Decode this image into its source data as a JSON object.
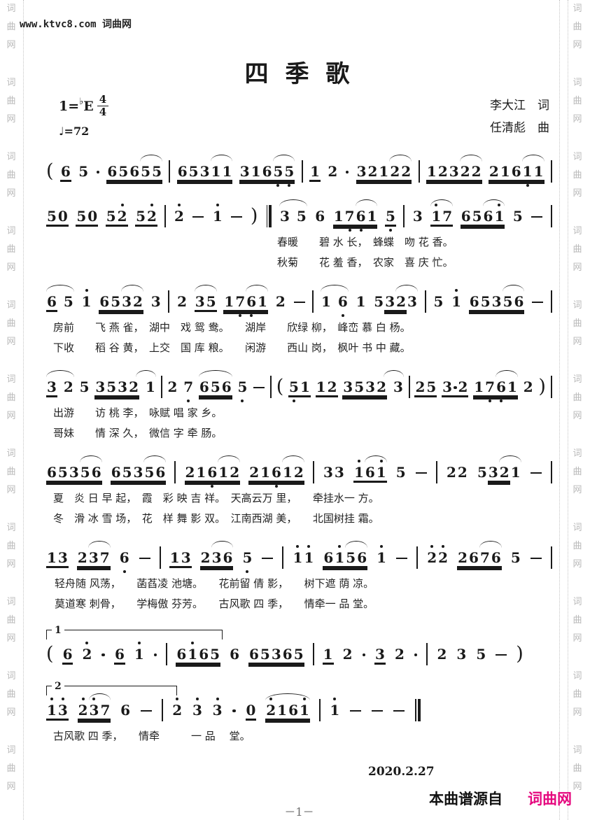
{
  "watermark": {
    "chars": [
      "词",
      "曲",
      "网"
    ],
    "repeat": 11,
    "color": "#b9b9b9",
    "site_note": "www.ktvc8.com 词曲网"
  },
  "header": {
    "title": "四 季 歌",
    "key_prefix": "1=",
    "key_flat": "♭",
    "key_letter": "E",
    "meter_numerator": "4",
    "meter_denominator": "4",
    "tempo": "♩=72",
    "lyricist": "李大江　词",
    "composer": "任清彪　曲"
  },
  "music": {
    "lines": [
      {
        "tokens": [
          "(",
          "6:u1",
          "5",
          "·",
          "65655:u2:a2",
          "|",
          "65311:u2:a2",
          "3165,5,:u2:a2",
          "|",
          "1:u1",
          "2",
          "·",
          "32122:u2:a2",
          "|",
          "12322:u2:a2",
          "2161,1:u2:a2",
          "|"
        ],
        "lyrics": []
      },
      {
        "tokens": [
          "50:u1",
          "50:u1",
          "52':u1",
          "52':u1",
          "|",
          "2'",
          "-",
          "1'",
          "-",
          ")",
          "||:",
          "3 5:a",
          "6",
          "17,6,1:u2:a2",
          "5,:u1",
          "|",
          "3",
          "1'7:u1:a",
          "6561':u2:a2",
          "5",
          "-",
          "|"
        ],
        "lyrics": [
          "春暖　　碧 水 长，　蜂蝶　吻 花 香。",
          "秋菊　　花 羞 香，　农家　喜 庆 忙。"
        ],
        "lyrics_indent": 330
      },
      {
        "tokens": [
          "6_ 5:a",
          "1'",
          "6532:u2:a2",
          "3",
          "|",
          "2",
          "35:u1:a",
          "17,6,1:u2:a2",
          "2",
          "-",
          "|",
          "1 6,:a",
          "1",
          "53__2__3:a2",
          "|",
          "5",
          "1'",
          "65356:u2:a2",
          "-",
          "|"
        ],
        "lyrics": [
          "房前　　飞 燕 雀，　湖中　戏 鸳 鸯。　　湖岸　　欣绿 柳，　峰峦 慕 白 杨。",
          "下收　　稻 谷 黄，　上交　国 库 粮。　　闲游　　西山 岗，　枫叶 书 中 藏。"
        ],
        "lyrics_indent": 10
      },
      {
        "tokens": [
          "3_ 2:a",
          "5",
          "3__5__3__2__ 1:a2",
          "|",
          "2",
          "7,",
          "656:u2:a",
          "5,",
          "-",
          "|",
          "(",
          "5,1:u1",
          "12:u1",
          "3__5__3__2__ 3:a2",
          "|",
          "25:u1",
          "3·2:u1",
          "17,6,1:u2:a2",
          "2",
          ")",
          "|"
        ],
        "lyrics": [
          "出游　　访 桃 李，　咏赋 唱 家 乡。",
          "哥妹　　情 深 久，　微信 字 牵 肠。"
        ],
        "lyrics_indent": 10
      },
      {
        "tokens": [
          "65356:u2:a2",
          "65356:u2:a2",
          "|",
          "216,12:u2:a2",
          "216,12:u2:a2",
          "|",
          "33",
          "1'61':u1:a2",
          "5",
          "-",
          "|",
          "22",
          "53__2__1:a2",
          "-",
          "|"
        ],
        "lyrics": [
          "夏　炎 日 早 起，　霞　彩 映 吉 祥。　天高云万 里，　　牵挂水一 方。",
          "冬　滑 冰 雪 场，　花　样 舞 影 双。　江南西湖 美，　　北国树挂 霜。"
        ],
        "lyrics_indent": 10
      },
      {
        "tokens": [
          "13:u1",
          "237:u2:a2",
          "6,",
          "-",
          "|",
          "13:u1",
          "236:u2:a2",
          "5,",
          "-",
          "|",
          "1'1'",
          "61'56:u2:a2",
          "1'",
          "-",
          "|",
          "2'2'",
          "2676:u2:a2",
          "5",
          "-",
          "|"
        ],
        "lyrics": [
          "轻舟随 风荡，　　菡萏凌 池塘。　　花前留 倩 影，　　树下遮 荫 凉。",
          "莫道寒 刺骨，　　学梅傲 芬芳。　　古风歌 四 季，　　情牵一 品 堂。"
        ],
        "lyrics_indent": 12
      },
      {
        "volta": "1",
        "volta_width": 250,
        "tokens": [
          "(",
          "6:u1",
          "2'",
          "·",
          "6:u1",
          "1'",
          "·",
          "|",
          "61'65:u2",
          "6",
          "65365:u2",
          "|",
          "1:u1",
          "2",
          "·",
          "3:u1",
          "2",
          "·",
          "|",
          "2",
          "3",
          "5",
          "-",
          ")",
          ":||"
        ],
        "lyrics": []
      },
      {
        "volta": "2",
        "volta_width": 185,
        "tokens": [
          "1'3':u1",
          "2'3'7:u2:a2",
          "6",
          "-",
          "|",
          "2'",
          "3'",
          "3'",
          "·",
          "0:u1",
          "2'161':u2:a",
          "|",
          "1'",
          "-",
          "-",
          "-",
          "||"
        ],
        "lyrics": [
          "古风歌 四 季，　　情牵　　　一 品　 堂。"
        ],
        "lyrics_indent": 10
      }
    ]
  },
  "footer": {
    "date": "2020.2.27",
    "page_number": "－1－",
    "source_label": "本曲谱源自",
    "source_site": "词曲网",
    "site_color": "#e5087e"
  }
}
